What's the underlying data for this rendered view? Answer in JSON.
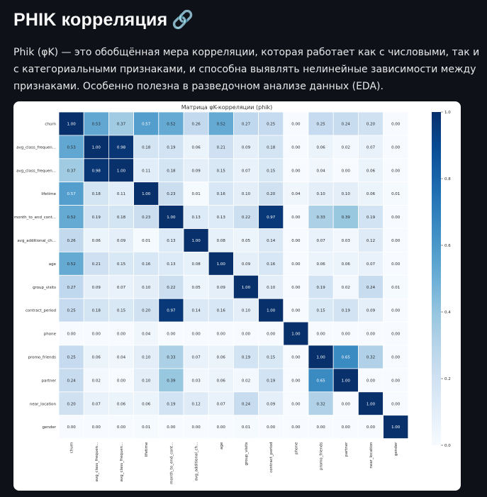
{
  "page": {
    "title": "PHIK корреляция",
    "title_icon": "🔗",
    "description": "Phik (φK) — это обобщённая мера корреляции, которая работает как с числовыми, так и с категориальными признаками, и способна выявлять нелинейные зависимости между признаками. Особенно полезна в разведочном анализе данных (EDA)."
  },
  "colors": {
    "background": "#0e1117",
    "card": "#ffffff",
    "colormap": "Blues"
  },
  "chart_data": {
    "type": "heatmap",
    "title": "Матрица φK-корреляции (phik)",
    "row_labels": [
      "churn",
      "avg_class_frequen...",
      "avg_class_frequen...",
      "lifetime",
      "month_to_end_cont...",
      "avg_additional_ch...",
      "age",
      "group_visits",
      "contract_period",
      "phone",
      "promo_friends",
      "partner",
      "near_location",
      "gender"
    ],
    "col_labels": [
      "churn",
      "avg_class_frequen...",
      "avg_class_frequen...",
      "lifetime",
      "month_to_end_cont...",
      "avg_additional_ch...",
      "age",
      "group_visits",
      "contract_period",
      "phone",
      "promo_friends",
      "partner",
      "near_location",
      "gender"
    ],
    "values": [
      [
        1.0,
        0.53,
        0.37,
        0.57,
        0.52,
        0.26,
        0.52,
        0.27,
        0.25,
        0.0,
        0.25,
        0.24,
        0.2,
        0.0
      ],
      [
        0.53,
        1.0,
        0.98,
        0.18,
        0.19,
        0.06,
        0.21,
        0.09,
        0.18,
        0.0,
        0.06,
        0.02,
        0.07,
        0.0
      ],
      [
        0.37,
        0.98,
        1.0,
        0.11,
        0.18,
        0.09,
        0.15,
        0.07,
        0.15,
        0.0,
        0.04,
        0.0,
        0.06,
        0.0
      ],
      [
        0.57,
        0.18,
        0.11,
        1.0,
        0.23,
        0.01,
        0.16,
        0.1,
        0.2,
        0.04,
        0.1,
        0.1,
        0.06,
        0.01
      ],
      [
        0.52,
        0.19,
        0.18,
        0.23,
        1.0,
        0.13,
        0.13,
        0.22,
        0.97,
        0.0,
        0.33,
        0.39,
        0.19,
        0.0
      ],
      [
        0.26,
        0.06,
        0.09,
        0.01,
        0.13,
        1.0,
        0.08,
        0.05,
        0.14,
        0.0,
        0.07,
        0.03,
        0.12,
        0.0
      ],
      [
        0.52,
        0.21,
        0.15,
        0.16,
        0.13,
        0.08,
        1.0,
        0.09,
        0.16,
        0.0,
        0.06,
        0.06,
        0.07,
        0.0
      ],
      [
        0.27,
        0.09,
        0.07,
        0.1,
        0.22,
        0.05,
        0.09,
        1.0,
        0.1,
        0.0,
        0.19,
        0.02,
        0.24,
        0.01
      ],
      [
        0.25,
        0.18,
        0.15,
        0.2,
        0.97,
        0.14,
        0.16,
        0.1,
        1.0,
        0.0,
        0.15,
        0.19,
        0.09,
        0.0
      ],
      [
        0.0,
        0.0,
        0.0,
        0.04,
        0.0,
        0.0,
        0.0,
        0.0,
        0.0,
        1.0,
        0.0,
        0.0,
        0.0,
        0.0
      ],
      [
        0.25,
        0.06,
        0.04,
        0.1,
        0.33,
        0.07,
        0.06,
        0.19,
        0.15,
        0.0,
        1.0,
        0.65,
        0.32,
        0.0
      ],
      [
        0.24,
        0.02,
        0.0,
        0.1,
        0.39,
        0.03,
        0.06,
        0.02,
        0.19,
        0.0,
        0.65,
        1.0,
        0.0,
        0.0
      ],
      [
        0.2,
        0.07,
        0.06,
        0.06,
        0.19,
        0.12,
        0.07,
        0.24,
        0.09,
        0.0,
        0.32,
        0.0,
        1.0,
        0.0
      ],
      [
        0.0,
        0.0,
        0.0,
        0.01,
        0.0,
        0.0,
        0.0,
        0.01,
        0.0,
        0.0,
        0.0,
        0.0,
        0.0,
        1.0
      ]
    ],
    "value_format": "0.00",
    "annotated": true,
    "colorbar": {
      "range": [
        0.0,
        1.0
      ],
      "ticks": [
        0.0,
        0.2,
        0.4,
        0.6,
        0.8,
        1.0
      ],
      "tick_labels": [
        "0.0",
        "0.2",
        "0.4",
        "0.6",
        "0.8",
        "1.0"
      ],
      "placement": "right"
    }
  }
}
